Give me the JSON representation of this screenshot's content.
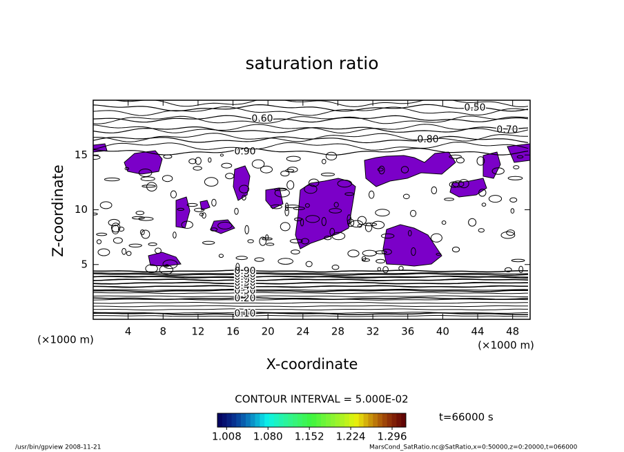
{
  "chart_data": {
    "type": "contour",
    "title": "saturation ratio",
    "xlabel": "X-coordinate",
    "ylabel": "Z-coordinate",
    "x_unit": "(×1000 m)",
    "y_unit": "(×1000 m)",
    "xlim": [
      0,
      50
    ],
    "xticks": [
      4,
      8,
      12,
      16,
      20,
      24,
      28,
      32,
      36,
      40,
      44,
      48
    ],
    "ylim": [
      0,
      20
    ],
    "yticks": [
      5,
      10,
      15
    ],
    "contour_levels": [
      {
        "value": 0.1,
        "label": "0.10"
      },
      {
        "value": 0.2,
        "label": "0.20"
      },
      {
        "value": 0.3,
        "label": "0.30"
      },
      {
        "value": 0.4,
        "label": "0.40"
      },
      {
        "value": 0.5,
        "label": "0.50"
      },
      {
        "value": 0.6,
        "label": "0.60"
      },
      {
        "value": 0.7,
        "label": "0.70"
      },
      {
        "value": 0.8,
        "label": "0.80"
      },
      {
        "value": 0.9,
        "label": "0.90"
      }
    ],
    "contour_interval": "CONTOUR INTERVAL = 5.000E-02",
    "fill_color": "#7b00c8",
    "clim": [
      0.992,
      1.32
    ],
    "cticks": [
      1.008,
      {
        "value": 1.08,
        "label": "1.080"
      },
      1.152,
      1.224,
      1.296
    ],
    "time_label": "t=66000 s",
    "footer_left": "/usr/bin/gpview  2008-11-21",
    "footer_right": "MarsCond_SatRatio.nc@SatRatio,x=0:50000,z=0:20000,t=066000"
  }
}
